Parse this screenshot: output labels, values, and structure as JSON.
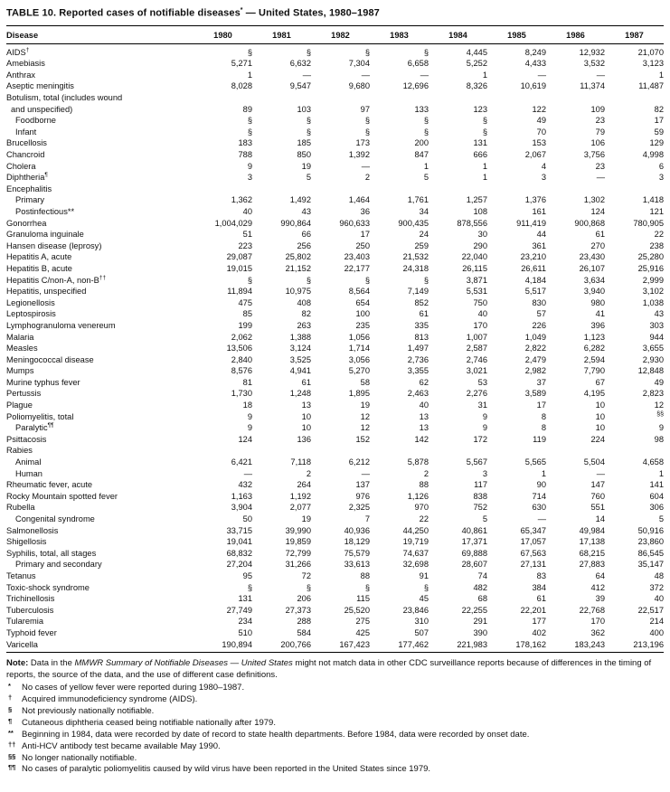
{
  "title": {
    "pre": "TABLE 10. Reported cases of notifiable diseases",
    "marker": "*",
    "post": " — United States, 1980–1987"
  },
  "table": {
    "disease_header": "Disease",
    "years": [
      "1980",
      "1981",
      "1982",
      "1983",
      "1984",
      "1985",
      "1986",
      "1987"
    ],
    "rows": [
      {
        "label": "AIDS",
        "sup": "†",
        "indent": 0,
        "values": [
          "§",
          "§",
          "§",
          "§",
          "4,445",
          "8,249",
          "12,932",
          "21,070"
        ]
      },
      {
        "label": "Amebiasis",
        "indent": 0,
        "values": [
          "5,271",
          "6,632",
          "7,304",
          "6,658",
          "5,252",
          "4,433",
          "3,532",
          "3,123"
        ]
      },
      {
        "label": "Anthrax",
        "indent": 0,
        "values": [
          "1",
          "—",
          "—",
          "—",
          "1",
          "—",
          "—",
          "1"
        ]
      },
      {
        "label": "Aseptic meningitis",
        "indent": 0,
        "values": [
          "8,028",
          "9,547",
          "9,680",
          "12,696",
          "8,326",
          "10,619",
          "11,374",
          "11,487"
        ]
      },
      {
        "label": "Botulism, total (includes wound",
        "indent": 0,
        "values": []
      },
      {
        "label": "and unspecified)",
        "indent": 1,
        "values": [
          "89",
          "103",
          "97",
          "133",
          "123",
          "122",
          "109",
          "82"
        ]
      },
      {
        "label": "Foodborne",
        "indent": 2,
        "values": [
          "§",
          "§",
          "§",
          "§",
          "§",
          "49",
          "23",
          "17"
        ]
      },
      {
        "label": "Infant",
        "indent": 2,
        "values": [
          "§",
          "§",
          "§",
          "§",
          "§",
          "70",
          "79",
          "59"
        ]
      },
      {
        "label": "Brucellosis",
        "indent": 0,
        "values": [
          "183",
          "185",
          "173",
          "200",
          "131",
          "153",
          "106",
          "129"
        ]
      },
      {
        "label": "Chancroid",
        "indent": 0,
        "values": [
          "788",
          "850",
          "1,392",
          "847",
          "666",
          "2,067",
          "3,756",
          "4,998"
        ]
      },
      {
        "label": "Cholera",
        "indent": 0,
        "values": [
          "9",
          "19",
          "—",
          "1",
          "1",
          "4",
          "23",
          "6"
        ]
      },
      {
        "label": "Diphtheria",
        "sup": "¶",
        "indent": 0,
        "values": [
          "3",
          "5",
          "2",
          "5",
          "1",
          "3",
          "—",
          "3"
        ]
      },
      {
        "label": "Encephalitis",
        "indent": 0,
        "values": []
      },
      {
        "label": "Primary",
        "indent": 2,
        "values": [
          "1,362",
          "1,492",
          "1,464",
          "1,761",
          "1,257",
          "1,376",
          "1,302",
          "1,418"
        ]
      },
      {
        "label": "Postinfectious**",
        "indent": 2,
        "values": [
          "40",
          "43",
          "36",
          "34",
          "108",
          "161",
          "124",
          "121"
        ]
      },
      {
        "label": "Gonorrhea",
        "indent": 0,
        "values": [
          "1,004,029",
          "990,864",
          "960,633",
          "900,435",
          "878,556",
          "911,419",
          "900,868",
          "780,905"
        ]
      },
      {
        "label": "Granuloma inguinale",
        "indent": 0,
        "values": [
          "51",
          "66",
          "17",
          "24",
          "30",
          "44",
          "61",
          "22"
        ]
      },
      {
        "label": "Hansen disease (leprosy)",
        "indent": 0,
        "values": [
          "223",
          "256",
          "250",
          "259",
          "290",
          "361",
          "270",
          "238"
        ]
      },
      {
        "label": "Hepatitis A, acute",
        "indent": 0,
        "values": [
          "29,087",
          "25,802",
          "23,403",
          "21,532",
          "22,040",
          "23,210",
          "23,430",
          "25,280"
        ]
      },
      {
        "label": "Hepatitis B, acute",
        "indent": 0,
        "values": [
          "19,015",
          "21,152",
          "22,177",
          "24,318",
          "26,115",
          "26,611",
          "26,107",
          "25,916"
        ]
      },
      {
        "label": "Hepatitis C/non-A, non-B",
        "sup": "††",
        "indent": 0,
        "values": [
          "§",
          "§",
          "§",
          "§",
          "3,871",
          "4,184",
          "3,634",
          "2,999"
        ]
      },
      {
        "label": "Hepatitis, unspecified",
        "indent": 0,
        "values": [
          "11,894",
          "10,975",
          "8,564",
          "7,149",
          "5,531",
          "5,517",
          "3,940",
          "3,102"
        ]
      },
      {
        "label": "Legionellosis",
        "indent": 0,
        "values": [
          "475",
          "408",
          "654",
          "852",
          "750",
          "830",
          "980",
          "1,038"
        ]
      },
      {
        "label": "Leptospirosis",
        "indent": 0,
        "values": [
          "85",
          "82",
          "100",
          "61",
          "40",
          "57",
          "41",
          "43"
        ]
      },
      {
        "label": "Lymphogranuloma venereum",
        "indent": 0,
        "values": [
          "199",
          "263",
          "235",
          "335",
          "170",
          "226",
          "396",
          "303"
        ]
      },
      {
        "label": "Malaria",
        "indent": 0,
        "values": [
          "2,062",
          "1,388",
          "1,056",
          "813",
          "1,007",
          "1,049",
          "1,123",
          "944"
        ]
      },
      {
        "label": "Measles",
        "indent": 0,
        "values": [
          "13,506",
          "3,124",
          "1,714",
          "1,497",
          "2,587",
          "2,822",
          "6,282",
          "3,655"
        ]
      },
      {
        "label": "Meningococcal disease",
        "indent": 0,
        "values": [
          "2,840",
          "3,525",
          "3,056",
          "2,736",
          "2,746",
          "2,479",
          "2,594",
          "2,930"
        ]
      },
      {
        "label": "Mumps",
        "indent": 0,
        "values": [
          "8,576",
          "4,941",
          "5,270",
          "3,355",
          "3,021",
          "2,982",
          "7,790",
          "12,848"
        ]
      },
      {
        "label": "Murine typhus fever",
        "indent": 0,
        "values": [
          "81",
          "61",
          "58",
          "62",
          "53",
          "37",
          "67",
          "49"
        ]
      },
      {
        "label": "Pertussis",
        "indent": 0,
        "values": [
          "1,730",
          "1,248",
          "1,895",
          "2,463",
          "2,276",
          "3,589",
          "4,195",
          "2,823"
        ]
      },
      {
        "label": "Plague",
        "indent": 0,
        "values": [
          "18",
          "13",
          "19",
          "40",
          "31",
          "17",
          "10",
          "12"
        ]
      },
      {
        "label": "Poliomyelitis, total",
        "indent": 0,
        "values": [
          "9",
          "10",
          "12",
          "13",
          "9",
          "8",
          "10",
          {
            "text": "§§",
            "sup": true
          }
        ]
      },
      {
        "label": "Paralytic",
        "sup": "¶¶",
        "indent": 2,
        "values": [
          "9",
          "10",
          "12",
          "13",
          "9",
          "8",
          "10",
          "9"
        ]
      },
      {
        "label": "Psittacosis",
        "indent": 0,
        "values": [
          "124",
          "136",
          "152",
          "142",
          "172",
          "119",
          "224",
          "98"
        ]
      },
      {
        "label": "Rabies",
        "indent": 0,
        "values": []
      },
      {
        "label": "Animal",
        "indent": 2,
        "values": [
          "6,421",
          "7,118",
          "6,212",
          "5,878",
          "5,567",
          "5,565",
          "5,504",
          "4,658"
        ]
      },
      {
        "label": "Human",
        "indent": 2,
        "values": [
          "—",
          "2",
          "—",
          "2",
          "3",
          "1",
          "—",
          "1"
        ]
      },
      {
        "label": "Rheumatic fever, acute",
        "indent": 0,
        "values": [
          "432",
          "264",
          "137",
          "88",
          "117",
          "90",
          "147",
          "141"
        ]
      },
      {
        "label": "Rocky Mountain spotted fever",
        "indent": 0,
        "values": [
          "1,163",
          "1,192",
          "976",
          "1,126",
          "838",
          "714",
          "760",
          "604"
        ]
      },
      {
        "label": "Rubella",
        "indent": 0,
        "values": [
          "3,904",
          "2,077",
          "2,325",
          "970",
          "752",
          "630",
          "551",
          "306"
        ]
      },
      {
        "label": "Congenital syndrome",
        "indent": 2,
        "values": [
          "50",
          "19",
          "7",
          "22",
          "5",
          "—",
          "14",
          "5"
        ]
      },
      {
        "label": "Salmonellosis",
        "indent": 0,
        "values": [
          "33,715",
          "39,990",
          "40,936",
          "44,250",
          "40,861",
          "65,347",
          "49,984",
          "50,916"
        ]
      },
      {
        "label": "Shigellosis",
        "indent": 0,
        "values": [
          "19,041",
          "19,859",
          "18,129",
          "19,719",
          "17,371",
          "17,057",
          "17,138",
          "23,860"
        ]
      },
      {
        "label": "Syphilis, total, all stages",
        "indent": 0,
        "values": [
          "68,832",
          "72,799",
          "75,579",
          "74,637",
          "69,888",
          "67,563",
          "68,215",
          "86,545"
        ]
      },
      {
        "label": "Primary and secondary",
        "indent": 2,
        "values": [
          "27,204",
          "31,266",
          "33,613",
          "32,698",
          "28,607",
          "27,131",
          "27,883",
          "35,147"
        ]
      },
      {
        "label": "Tetanus",
        "indent": 0,
        "values": [
          "95",
          "72",
          "88",
          "91",
          "74",
          "83",
          "64",
          "48"
        ]
      },
      {
        "label": "Toxic-shock syndrome",
        "indent": 0,
        "values": [
          "§",
          "§",
          "§",
          "§",
          "482",
          "384",
          "412",
          "372"
        ]
      },
      {
        "label": "Trichinellosis",
        "indent": 0,
        "values": [
          "131",
          "206",
          "115",
          "45",
          "68",
          "61",
          "39",
          "40"
        ]
      },
      {
        "label": "Tuberculosis",
        "indent": 0,
        "values": [
          "27,749",
          "27,373",
          "25,520",
          "23,846",
          "22,255",
          "22,201",
          "22,768",
          "22,517"
        ]
      },
      {
        "label": "Tularemia",
        "indent": 0,
        "values": [
          "234",
          "288",
          "275",
          "310",
          "291",
          "177",
          "170",
          "214"
        ]
      },
      {
        "label": "Typhoid fever",
        "indent": 0,
        "values": [
          "510",
          "584",
          "425",
          "507",
          "390",
          "402",
          "362",
          "400"
        ]
      },
      {
        "label": "Varicella",
        "indent": 0,
        "values": [
          "190,894",
          "200,766",
          "167,423",
          "177,462",
          "221,983",
          "178,162",
          "183,243",
          "213,196"
        ]
      }
    ]
  },
  "note": {
    "label": "Note:",
    "pre": " Data in the ",
    "italic": "MMWR Summary of Notifiable Diseases — United States",
    "post": " might not match data in other CDC surveillance reports because of differences in the timing of reports, the source of the data, and the use of different case definitions."
  },
  "footnotes": [
    {
      "marker": "*",
      "text": "No cases of yellow fever were reported during 1980–1987."
    },
    {
      "marker": "†",
      "text": "Acquired immunodeficiency syndrome (AIDS)."
    },
    {
      "marker": "§",
      "text": "Not previously nationally notifiable."
    },
    {
      "marker": "¶",
      "text": "Cutaneous diphtheria ceased being notifiable nationally after 1979."
    },
    {
      "marker": "**",
      "text": "Beginning in 1984, data were recorded by date of record to state health departments.  Before 1984, data were recorded by onset date."
    },
    {
      "marker": "††",
      "text": "Anti-HCV antibody test became available May 1990."
    },
    {
      "marker": "§§",
      "text": "No longer nationally notifiable."
    },
    {
      "marker": "¶¶",
      "text": "No cases of paralytic poliomyelitis caused by wild virus have been reported in the United States since 1979."
    }
  ]
}
